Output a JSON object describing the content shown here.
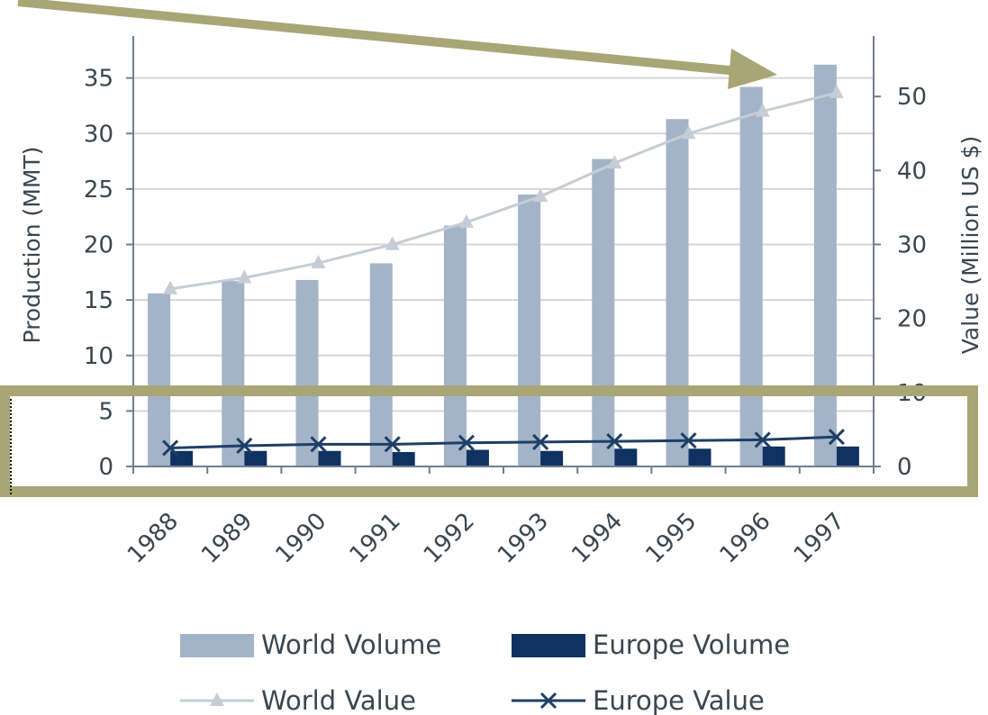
{
  "chart_data": {
    "type": "bar",
    "categories": [
      "1988",
      "1989",
      "1990",
      "1991",
      "1992",
      "1993",
      "1994",
      "1995",
      "1996",
      "1997"
    ],
    "category_labels_visible": [
      "1988",
      "1989",
      "1990",
      "1991",
      "1992",
      "1993",
      "1994",
      "1995",
      "1996",
      "1997"
    ],
    "series": [
      {
        "name": "World Volume",
        "kind": "bar",
        "axis": "left",
        "values": [
          15.6,
          16.7,
          16.8,
          18.3,
          21.7,
          24.5,
          27.7,
          31.3,
          34.2,
          36.2
        ]
      },
      {
        "name": "Europe Volume",
        "kind": "bar",
        "axis": "left",
        "values": [
          1.4,
          1.4,
          1.4,
          1.3,
          1.5,
          1.4,
          1.6,
          1.6,
          1.8,
          1.8
        ]
      },
      {
        "name": "World Value",
        "kind": "line",
        "marker": "triangle",
        "axis": "right",
        "values": [
          24,
          25.5,
          27.5,
          30,
          33,
          36.5,
          41,
          45,
          48,
          50.5
        ]
      },
      {
        "name": "Europe Value",
        "kind": "line",
        "marker": "x",
        "axis": "right",
        "values": [
          2.5,
          2.8,
          3.0,
          3.0,
          3.2,
          3.3,
          3.4,
          3.5,
          3.6,
          4.0
        ]
      }
    ],
    "ylabel": "Production (MMT)",
    "ylabel_right": "Value (Million US $)",
    "ylim": [
      0,
      40
    ],
    "yticks": [
      0,
      5,
      10,
      15,
      20,
      25,
      30,
      35,
      40
    ],
    "ylim_right": [
      0,
      60
    ],
    "yticks_right": [
      0,
      10,
      20,
      30,
      40,
      50,
      60
    ],
    "grid": true,
    "legend_position": "bottom",
    "annotations": [
      "arrow pointing to 1997 World Value",
      "highlight box around Europe series near zero"
    ]
  },
  "colors": {
    "world_volume": "#a3b3c8",
    "europe_volume": "#0f3260",
    "world_value": "#c6cdd6",
    "europe_value": "#1d3f66",
    "annotation": "#a9a676",
    "grid": "#d6d6d6",
    "axis": "#6f7f90"
  }
}
